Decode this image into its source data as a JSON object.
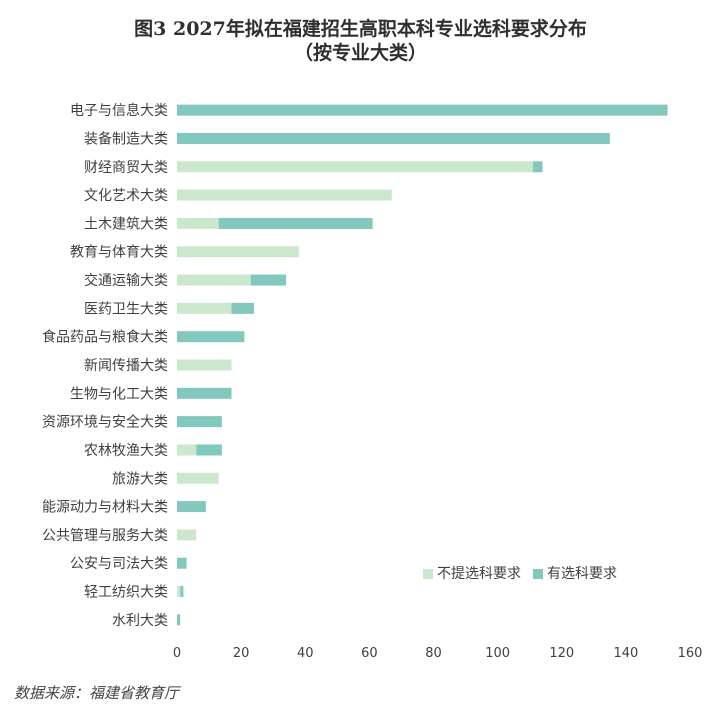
{
  "colors": {
    "no_requirement": "#cbe8cd",
    "with_requirement": "#82c8be",
    "axis_text": "#404040",
    "grid": "#d9d9d9"
  },
  "source": "数据来源：福建省教育厅",
  "chart_data": {
    "type": "bar",
    "orientation": "horizontal",
    "stacked": true,
    "title": "图3 2027年拟在福建招生高职本科专业选科要求分布",
    "subtitle": "（按专业大类）",
    "categories": [
      "电子与信息大类",
      "装备制造大类",
      "财经商贸大类",
      "文化艺术大类",
      "土木建筑大类",
      "教育与体育大类",
      "交通运输大类",
      "医药卫生大类",
      "食品药品与粮食大类",
      "新闻传播大类",
      "生物与化工大类",
      "资源环境与安全大类",
      "农林牧渔大类",
      "旅游大类",
      "能源动力与材料大类",
      "公共管理与服务大类",
      "公安与司法大类",
      "轻工纺织大类",
      "水利大类"
    ],
    "series": [
      {
        "name": "不提选科要求",
        "color": "#cbe8cd",
        "values": [
          0,
          0,
          111,
          67,
          13,
          38,
          23,
          17,
          0,
          17,
          0,
          0,
          6,
          13,
          0,
          6,
          0,
          1,
          0
        ]
      },
      {
        "name": "有选科要求",
        "color": "#82c8be",
        "values": [
          153,
          135,
          3,
          0,
          48,
          0,
          11,
          7,
          21,
          0,
          17,
          14,
          8,
          0,
          9,
          0,
          3,
          1,
          1
        ]
      }
    ],
    "xlim": [
      0,
      160
    ],
    "xticks": [
      0,
      20,
      40,
      60,
      80,
      100,
      120,
      140,
      160
    ],
    "grid": false,
    "legend_position": "bottom-right"
  }
}
